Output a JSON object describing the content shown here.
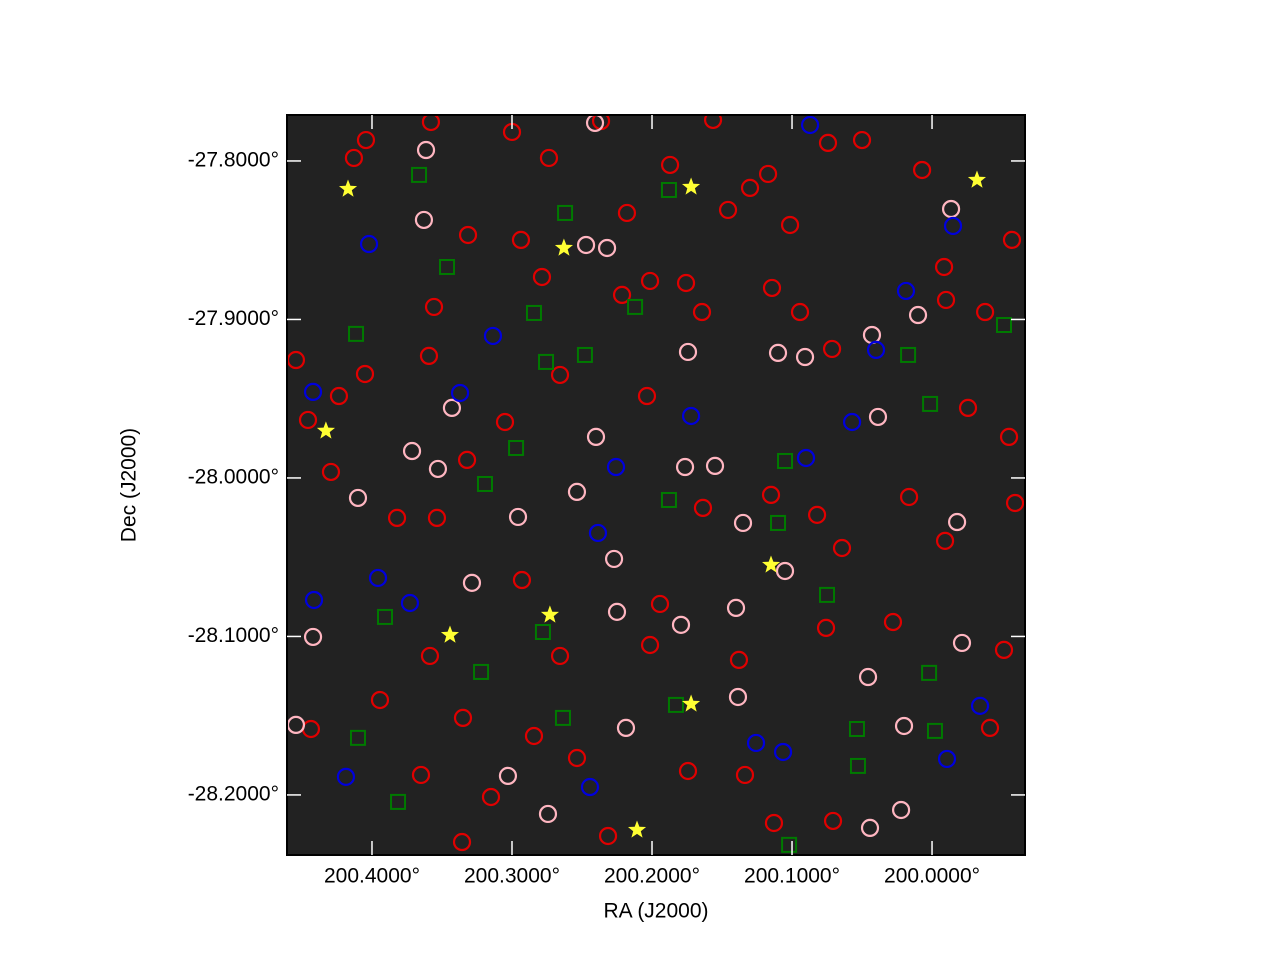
{
  "chart_data": {
    "type": "scatter",
    "xlabel": "RA (J2000)",
    "ylabel": "Dec (J2000)",
    "xlim": [
      200.4607,
      199.9336
    ],
    "ylim": [
      -28.2379,
      -27.771
    ],
    "xticks": [
      {
        "value": 200.4,
        "label": "200.4000°"
      },
      {
        "value": 200.3,
        "label": "200.3000°"
      },
      {
        "value": 200.2,
        "label": "200.2000°"
      },
      {
        "value": 200.1,
        "label": "200.1000°"
      },
      {
        "value": 200.0,
        "label": "200.0000°"
      }
    ],
    "yticks": [
      {
        "value": -27.8,
        "label": "-27.8000°"
      },
      {
        "value": -27.9,
        "label": "-27.9000°"
      },
      {
        "value": -28.0,
        "label": "-28.0000°"
      },
      {
        "value": -28.1,
        "label": "-28.1000°"
      },
      {
        "value": -28.2,
        "label": "-28.2000°"
      }
    ],
    "series": [
      {
        "marker": "circle",
        "color": "#e00000",
        "x": [
          200.4129,
          200.4043,
          200.3579,
          200.3,
          200.2736,
          200.2364,
          200.2179,
          200.1871,
          200.1564,
          200.1457,
          200.13,
          200.1171,
          200.1014,
          200.0743,
          200.05,
          200.0071,
          199.9914,
          199.9429,
          199.9621,
          199.99,
          200.0714,
          200.0943,
          200.1143,
          200.1643,
          200.1757,
          200.2014,
          200.2214,
          200.2786,
          200.2936,
          200.3314,
          200.3557,
          200.3593,
          200.405,
          200.4236,
          200.4543,
          200.4457,
          200.4293,
          200.3821,
          200.3536,
          200.3321,
          200.305,
          200.2657,
          200.2036,
          200.1636,
          200.115,
          200.0821,
          200.0643,
          200.0164,
          199.9907,
          199.9407,
          199.945,
          199.9743,
          200.1943,
          200.2657,
          200.2929,
          200.3586,
          200.335,
          200.2843,
          200.2536,
          200.2314,
          200.1743,
          200.1336,
          200.1129,
          200.0707,
          199.9586,
          199.9486,
          200.0279,
          200.0757,
          200.1379,
          200.2014,
          200.3943,
          200.4436,
          200.365,
          200.315,
          200.3357
        ],
        "y": [
          -27.7981,
          -27.7868,
          -27.7754,
          -27.7817,
          -27.7981,
          -27.7748,
          -27.8328,
          -27.8025,
          -27.7741,
          -27.8309,
          -27.817,
          -27.8082,
          -27.8404,
          -27.7886,
          -27.7868,
          -27.8057,
          -27.8669,
          -27.8498,
          -27.8953,
          -27.8877,
          -27.9186,
          -27.8953,
          -27.8801,
          -27.8953,
          -27.877,
          -27.8757,
          -27.8845,
          -27.8732,
          -27.8498,
          -27.8467,
          -27.8921,
          -27.923,
          -27.9344,
          -27.9483,
          -27.9256,
          -27.9634,
          -27.9962,
          -28.0252,
          -28.0252,
          -27.9886,
          -27.9647,
          -27.935,
          -27.9483,
          -28.0189,
          -28.0107,
          -28.0233,
          -28.0442,
          -28.012,
          -28.0397,
          -28.0158,
          -27.9741,
          -27.9558,
          -28.0795,
          -28.1123,
          -28.0644,
          -28.1123,
          -28.1514,
          -28.1628,
          -28.1767,
          -28.2259,
          -28.1849,
          -28.1874,
          -28.2177,
          -28.2164,
          -28.1577,
          -28.1085,
          -28.0909,
          -28.0946,
          -28.1148,
          -28.1054,
          -28.1401,
          -28.1584,
          -28.1874,
          -28.2013,
          -28.2297
        ]
      },
      {
        "marker": "circle",
        "color": "#ffb6c1",
        "x": [
          200.3614,
          200.3629,
          200.2471,
          200.2321,
          200.1743,
          200.0429,
          200.01,
          200.11,
          200.0907,
          200.3429,
          200.3714,
          200.3529,
          200.24,
          200.155,
          200.0386,
          200.1764,
          200.2536,
          200.41,
          200.2957,
          200.135,
          199.9821,
          200.2271,
          200.225,
          200.14,
          200.105,
          200.3286,
          200.1793,
          199.9786,
          200.0457,
          200.02,
          200.1386,
          200.2186,
          200.3029,
          200.2743,
          200.0443,
          200.0221,
          200.4543,
          200.4421,
          199.9864,
          200.2407
        ],
        "y": [
          -27.7931,
          -27.8372,
          -27.853,
          -27.8549,
          -27.9205,
          -27.9098,
          -27.8972,
          -27.9211,
          -27.9237,
          -27.9558,
          -27.983,
          -27.9943,
          -27.9741,
          -27.9924,
          -27.9615,
          -27.9931,
          -28.0088,
          -28.0126,
          -28.0246,
          -28.0284,
          -28.0278,
          -28.0511,
          -28.0845,
          -28.082,
          -28.0587,
          -28.0662,
          -28.0927,
          -28.1041,
          -28.1256,
          -28.1565,
          -28.1382,
          -28.1577,
          -28.188,
          -28.212,
          -28.2208,
          -28.2095,
          -28.1558,
          -28.1003,
          -27.8303,
          -27.776
        ]
      },
      {
        "marker": "circle",
        "color": "#0000dd",
        "x": [
          200.4021,
          200.3136,
          200.4421,
          200.3371,
          200.04,
          200.0186,
          200.1721,
          200.2257,
          200.09,
          200.0571,
          200.2386,
          200.3957,
          200.3729,
          200.4414,
          200.4186,
          200.2443,
          200.1257,
          200.1064,
          199.9893,
          199.9657,
          199.985,
          200.0871
        ],
        "y": [
          -27.8524,
          -27.9104,
          -27.9457,
          -27.9464,
          -27.9192,
          -27.882,
          -27.9609,
          -27.9931,
          -27.9874,
          -27.9647,
          -28.0347,
          -28.0631,
          -28.0789,
          -28.077,
          -28.1886,
          -28.195,
          -28.1672,
          -28.1729,
          -28.1773,
          -28.1438,
          -27.841,
          -27.7773
        ]
      },
      {
        "marker": "square",
        "color": "#007a00",
        "x": [
          200.3664,
          200.2621,
          200.1879,
          200.3464,
          200.2121,
          200.2843,
          200.4114,
          199.9486,
          200.2479,
          200.2757,
          200.0171,
          200.0014,
          200.2971,
          200.105,
          200.3193,
          200.1879,
          200.11,
          200.075,
          200.3907,
          200.2779,
          200.3221,
          200.0021,
          200.1829,
          200.2636,
          200.41,
          200.0536,
          199.9979,
          200.0529,
          200.3814,
          200.1021
        ],
        "y": [
          -27.8088,
          -27.8328,
          -27.8183,
          -27.8669,
          -27.8921,
          -27.8959,
          -27.9091,
          -27.9035,
          -27.9224,
          -27.9268,
          -27.9224,
          -27.9533,
          -27.9811,
          -27.9893,
          -28.0038,
          -28.0139,
          -28.0284,
          -28.0738,
          -28.0877,
          -28.0972,
          -28.1224,
          -28.123,
          -28.1432,
          -28.1514,
          -28.164,
          -28.1584,
          -28.1596,
          -28.1817,
          -28.2044,
          -28.2315
        ]
      },
      {
        "marker": "star",
        "color": "#ffff33",
        "x": [
          200.4171,
          200.1721,
          199.9679,
          200.2629,
          200.4329,
          200.115,
          200.2729,
          200.3443,
          200.1721,
          200.2107
        ],
        "y": [
          -27.8177,
          -27.8164,
          -27.812,
          -27.8549,
          -27.9703,
          -28.0549,
          -28.0864,
          -28.0991,
          -28.1426,
          -28.2221
        ]
      }
    ]
  }
}
